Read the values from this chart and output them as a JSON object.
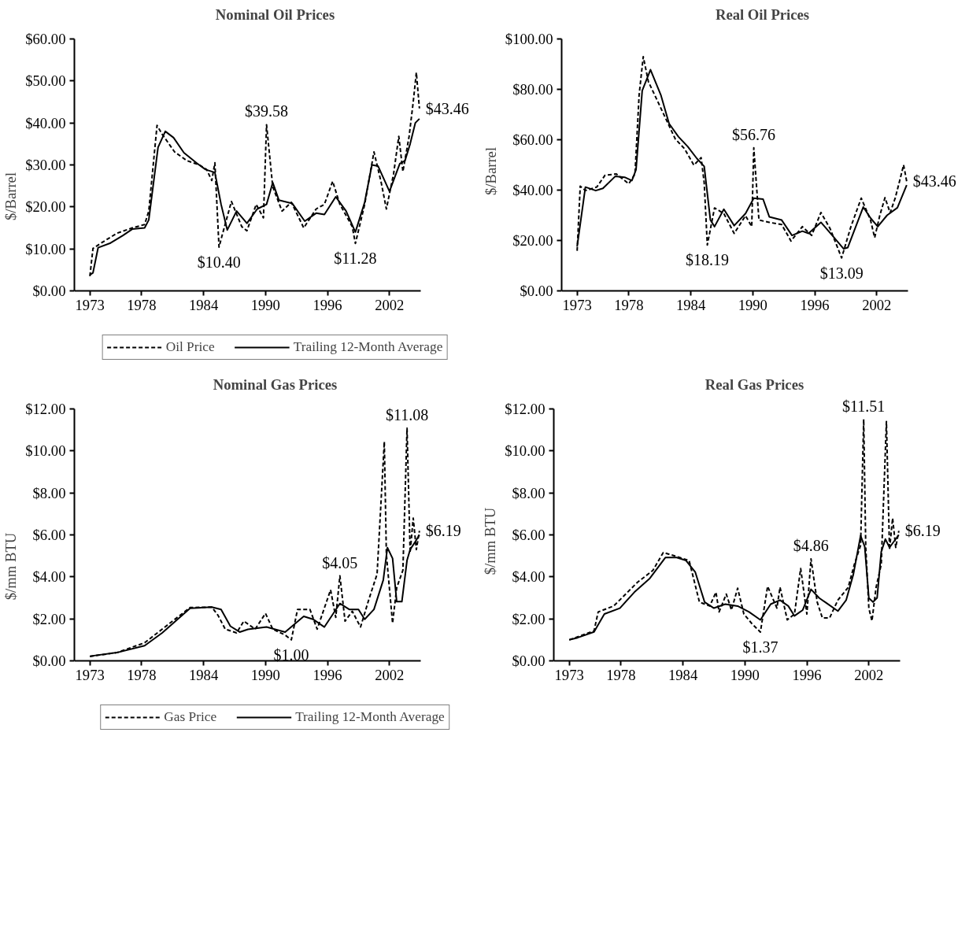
{
  "chart_data": [
    {
      "type": "line",
      "title": "Nominal Oil Prices",
      "ylabel": "$/Barrel",
      "xlim": [
        1971.5,
        2005
      ],
      "xticks": [
        1973,
        1978,
        1984,
        1990,
        1996,
        2002
      ],
      "ylim": [
        0,
        60
      ],
      "yticks": [
        {
          "value": 0,
          "label": "$0.00"
        },
        {
          "value": 10,
          "label": "$10.00"
        },
        {
          "value": 20,
          "label": "$20.00"
        },
        {
          "value": 30,
          "label": "$30.00"
        },
        {
          "value": 40,
          "label": "$40.00"
        },
        {
          "value": 50,
          "label": "$50.00"
        },
        {
          "value": 60,
          "label": "$60.00"
        }
      ],
      "legend": "bottom",
      "grid": false,
      "series": [
        {
          "name": "Oil Price",
          "color": "#000000",
          "line_style": "dashed",
          "x": [
            1973.0,
            1973.3,
            1974.1,
            1975.6,
            1977.1,
            1978.3,
            1978.7,
            1979.5,
            1980.0,
            1981.2,
            1982.4,
            1983.6,
            1984.3,
            1984.8,
            1985.1,
            1985.5,
            1985.8,
            1986.7,
            1987.7,
            1988.2,
            1989.1,
            1989.8,
            1990.1,
            1990.7,
            1991.6,
            1992.5,
            1993.7,
            1994.9,
            1995.7,
            1996.5,
            1997.2,
            1998.4,
            1998.7,
            1999.6,
            2000.5,
            2001.2,
            2001.7,
            2002.4,
            2002.9,
            2003.3,
            2003.9,
            2004.3,
            2004.6,
            2004.9
          ],
          "values": [
            3.5,
            10.1,
            11.4,
            13.7,
            15.0,
            15.8,
            19.0,
            39.4,
            37.3,
            33.1,
            31.0,
            30.0,
            28.9,
            26.3,
            30.5,
            10.4,
            13.2,
            21.3,
            15.3,
            14.3,
            20.6,
            17.4,
            39.58,
            24.8,
            19.0,
            21.1,
            15.0,
            19.5,
            20.6,
            26.1,
            20.6,
            15.3,
            11.28,
            20.6,
            33.1,
            25.8,
            19.5,
            27.9,
            36.8,
            28.4,
            36.8,
            45.0,
            52.0,
            43.46
          ]
        },
        {
          "name": "Trailing 12-Month Average",
          "color": "#000000",
          "line_style": "solid",
          "x": [
            1973.0,
            1973.3,
            1973.8,
            1975.0,
            1976.2,
            1977.1,
            1978.3,
            1978.7,
            1979.6,
            1980.3,
            1981.1,
            1982.1,
            1983.3,
            1984.2,
            1985.1,
            1985.7,
            1986.3,
            1987.2,
            1988.2,
            1989.2,
            1990.1,
            1990.7,
            1991.3,
            1992.6,
            1993.8,
            1994.9,
            1995.7,
            1996.8,
            1997.8,
            1998.7,
            1999.6,
            2000.3,
            2000.9,
            2002.0,
            2003.0,
            2003.5,
            2004.0,
            2004.5,
            2004.9
          ],
          "values": [
            3.8,
            4.3,
            10.3,
            11.4,
            13.2,
            14.7,
            15.0,
            16.9,
            34.2,
            38.0,
            36.5,
            32.9,
            30.5,
            28.9,
            28.2,
            20.6,
            14.5,
            19.0,
            16.1,
            19.5,
            20.6,
            25.8,
            21.6,
            20.8,
            16.6,
            18.5,
            18.2,
            22.4,
            19.0,
            14.0,
            21.1,
            30.0,
            29.7,
            23.7,
            30.3,
            31.0,
            35.0,
            40.0,
            41.0
          ]
        }
      ],
      "annotations": [
        {
          "text": "$39.58",
          "x": 1990.1,
          "y": 39.58
        },
        {
          "text": "$10.40",
          "x": 1985.5,
          "y": 10.4
        },
        {
          "text": "$11.28",
          "x": 1998.7,
          "y": 11.28
        },
        {
          "text": "$43.46",
          "x": 2004.9,
          "y": 43.46
        }
      ]
    },
    {
      "type": "line",
      "title": "Real Oil Prices",
      "ylabel": "$/Barrel",
      "xlim": [
        1971.5,
        2005
      ],
      "xticks": [
        1973,
        1978,
        1984,
        1990,
        1996,
        2002
      ],
      "ylim": [
        0,
        100
      ],
      "yticks": [
        {
          "value": 0,
          "label": "$0.00"
        },
        {
          "value": 20,
          "label": "$20.00"
        },
        {
          "value": 40,
          "label": "$40.00"
        },
        {
          "value": 60,
          "label": "$60.00"
        },
        {
          "value": 80,
          "label": "$80.00"
        },
        {
          "value": 100,
          "label": "$100.00"
        }
      ],
      "grid": false,
      "series": [
        {
          "color": "#000000",
          "line_style": "dashed",
          "x": [
            1973.0,
            1973.3,
            1973.8,
            1974.9,
            1975.7,
            1976.8,
            1978.0,
            1978.6,
            1979.0,
            1979.4,
            1979.9,
            1980.8,
            1981.7,
            1982.5,
            1983.4,
            1984.3,
            1985.0,
            1985.3,
            1985.6,
            1986.3,
            1987.2,
            1988.2,
            1989.3,
            1989.9,
            1990.1,
            1990.6,
            1991.6,
            1992.8,
            1993.7,
            1994.8,
            1995.7,
            1996.6,
            1997.5,
            1998.6,
            1999.5,
            2000.5,
            2001.4,
            2001.8,
            2002.3,
            2002.8,
            2003.3,
            2003.8,
            2004.3,
            2004.6,
            2004.9
          ],
          "values": [
            15.9,
            41.6,
            39.8,
            41.2,
            45.9,
            46.4,
            42.5,
            46.4,
            77.8,
            93.0,
            83.0,
            75.2,
            67.3,
            60.3,
            56.4,
            49.9,
            52.9,
            42.9,
            18.19,
            32.9,
            30.7,
            22.8,
            29.8,
            25.5,
            56.76,
            28.1,
            27.2,
            26.3,
            19.8,
            25.5,
            22.0,
            31.1,
            24.6,
            13.09,
            25.5,
            36.8,
            28.1,
            21.1,
            30.0,
            37.0,
            31.0,
            37.0,
            45.0,
            50.0,
            43.46
          ]
        },
        {
          "color": "#000000",
          "line_style": "solid",
          "x": [
            1973.0,
            1973.8,
            1974.8,
            1975.5,
            1976.7,
            1977.6,
            1978.3,
            1978.7,
            1979.3,
            1980.1,
            1981.1,
            1981.9,
            1982.8,
            1983.7,
            1984.6,
            1985.3,
            1985.9,
            1986.3,
            1987.2,
            1988.2,
            1989.3,
            1990.1,
            1991.0,
            1991.6,
            1992.8,
            1993.8,
            1994.8,
            1995.4,
            1996.6,
            1997.7,
            1998.8,
            1999.2,
            2000.7,
            2001.4,
            2002.1,
            2003.0,
            2004.0,
            2004.9
          ],
          "values": [
            17.6,
            41.2,
            39.8,
            40.7,
            45.5,
            45.1,
            43.8,
            48.1,
            79.5,
            87.8,
            77.8,
            66.4,
            61.2,
            57.3,
            52.5,
            49.4,
            28.1,
            25.5,
            32.4,
            25.9,
            30.7,
            36.8,
            36.4,
            29.4,
            28.1,
            22.0,
            23.7,
            22.8,
            27.2,
            22.0,
            16.7,
            17.2,
            33.3,
            28.9,
            25.5,
            30.0,
            33.0,
            42.0
          ]
        }
      ],
      "annotations": [
        {
          "text": "$56.76",
          "x": 1990.1,
          "y": 56.76
        },
        {
          "text": "$18.19",
          "x": 1985.6,
          "y": 18.19
        },
        {
          "text": "$13.09",
          "x": 1998.6,
          "y": 13.09
        },
        {
          "text": "$43.46",
          "x": 2004.9,
          "y": 43.46
        }
      ]
    },
    {
      "type": "line",
      "title": "Nominal Gas Prices",
      "ylabel": "$/mm BTU",
      "xlim": [
        1971.5,
        2005
      ],
      "xticks": [
        1973,
        1978,
        1984,
        1990,
        1996,
        2002
      ],
      "ylim": [
        0,
        12
      ],
      "yticks": [
        {
          "value": 0,
          "label": "$0.00"
        },
        {
          "value": 2,
          "label": "$2.00"
        },
        {
          "value": 4,
          "label": "$4.00"
        },
        {
          "value": 6,
          "label": "$6.00"
        },
        {
          "value": 8,
          "label": "$8.00"
        },
        {
          "value": 10,
          "label": "$10.00"
        },
        {
          "value": 12,
          "label": "$12.00"
        }
      ],
      "legend": "bottom",
      "grid": false,
      "series": [
        {
          "name": "Gas Price",
          "color": "#000000",
          "line_style": "dashed",
          "x": [
            1973.0,
            1975.6,
            1978.3,
            1980.0,
            1982.7,
            1984.8,
            1985.4,
            1986.1,
            1987.2,
            1987.9,
            1989.0,
            1990.0,
            1990.7,
            1991.9,
            1992.5,
            1993.1,
            1994.3,
            1995.0,
            1996.3,
            1996.8,
            1997.2,
            1997.7,
            1998.4,
            1999.2,
            2000.0,
            2000.8,
            2001.5,
            2001.7,
            2002.3,
            2002.7,
            2003.3,
            2003.7,
            2004.0,
            2004.3,
            2004.6,
            2004.9
          ],
          "values": [
            0.21,
            0.39,
            0.86,
            1.51,
            2.54,
            2.56,
            2.17,
            1.51,
            1.33,
            1.89,
            1.51,
            2.26,
            1.51,
            1.23,
            1.0,
            2.45,
            2.45,
            1.51,
            3.38,
            2.07,
            4.05,
            1.89,
            2.36,
            1.61,
            2.92,
            4.13,
            10.44,
            5.07,
            1.79,
            3.48,
            4.32,
            11.08,
            5.16,
            6.8,
            5.3,
            6.19
          ]
        },
        {
          "name": "Trailing 12-Month Average",
          "color": "#000000",
          "line_style": "solid",
          "x": [
            1973.0,
            1975.6,
            1978.3,
            1980.0,
            1982.7,
            1984.8,
            1985.7,
            1986.6,
            1987.5,
            1988.3,
            1990.1,
            1991.9,
            1993.7,
            1994.6,
            1995.7,
            1997.2,
            1998.1,
            1999.0,
            1999.6,
            2000.5,
            2001.4,
            2001.8,
            2002.3,
            2002.7,
            2003.2,
            2003.7,
            2004.0,
            2004.4,
            2004.9
          ],
          "values": [
            0.22,
            0.39,
            0.72,
            1.33,
            2.5,
            2.56,
            2.45,
            1.65,
            1.37,
            1.5,
            1.61,
            1.37,
            2.12,
            1.98,
            1.61,
            2.73,
            2.45,
            2.45,
            1.98,
            2.45,
            3.85,
            5.39,
            4.88,
            2.82,
            2.82,
            4.79,
            5.3,
            5.6,
            6.0
          ]
        }
      ],
      "annotations": [
        {
          "text": "$11.08",
          "x": 2003.7,
          "y": 11.08
        },
        {
          "text": "$4.05",
          "x": 1997.2,
          "y": 4.05
        },
        {
          "text": "$1.00",
          "x": 1992.5,
          "y": 1.0
        },
        {
          "text": "$6.19",
          "x": 2004.9,
          "y": 6.19
        }
      ]
    },
    {
      "type": "line",
      "title": "Real Gas Prices",
      "ylabel": "$/mm BTU",
      "xlim": [
        1971.5,
        2005
      ],
      "xticks": [
        1973,
        1978,
        1984,
        1990,
        1996,
        2002
      ],
      "ylim": [
        0,
        12
      ],
      "yticks": [
        {
          "value": 0,
          "label": "$0.00"
        },
        {
          "value": 2,
          "label": "$2.00"
        },
        {
          "value": 4,
          "label": "$4.00"
        },
        {
          "value": 6,
          "label": "$6.00"
        },
        {
          "value": 8,
          "label": "$8.00"
        },
        {
          "value": 10,
          "label": "$10.00"
        },
        {
          "value": 12,
          "label": "$12.00"
        }
      ],
      "grid": false,
      "series": [
        {
          "color": "#000000",
          "line_style": "dashed",
          "x": [
            1973.0,
            1975.4,
            1975.8,
            1977.3,
            1979.6,
            1981.1,
            1982.1,
            1983.4,
            1984.6,
            1985.6,
            1986.6,
            1987.2,
            1987.5,
            1988.2,
            1988.7,
            1989.3,
            1989.9,
            1990.7,
            1991.5,
            1992.2,
            1993.1,
            1993.4,
            1994.1,
            1994.8,
            1995.4,
            1996.0,
            1996.4,
            1997.0,
            1997.5,
            1998.2,
            1999.0,
            2000.0,
            2000.6,
            2001.2,
            2001.5,
            2001.7,
            2002.0,
            2002.3,
            2002.7,
            2003.2,
            2003.7,
            2004.0,
            2004.3,
            2004.6,
            2004.9
          ],
          "values": [
            1.0,
            1.43,
            2.33,
            2.61,
            3.74,
            4.31,
            5.16,
            4.97,
            4.78,
            2.8,
            2.61,
            3.27,
            2.33,
            3.18,
            2.42,
            3.46,
            2.23,
            1.76,
            1.37,
            3.55,
            2.51,
            3.51,
            1.95,
            2.23,
            4.4,
            2.23,
            4.86,
            2.8,
            2.04,
            2.04,
            2.89,
            3.5,
            4.6,
            5.5,
            11.51,
            5.4,
            2.5,
            1.9,
            3.5,
            4.6,
            11.4,
            5.3,
            6.8,
            5.4,
            6.19
          ]
        },
        {
          "color": "#000000",
          "line_style": "solid",
          "x": [
            1973.0,
            1973.8,
            1975.4,
            1976.4,
            1977.9,
            1979.3,
            1980.8,
            1982.3,
            1983.4,
            1984.3,
            1985.2,
            1986.1,
            1987.0,
            1988.1,
            1989.3,
            1990.4,
            1991.5,
            1992.5,
            1993.4,
            1994.2,
            1994.8,
            1995.6,
            1996.4,
            1997.2,
            1997.9,
            1999.0,
            1999.8,
            2000.5,
            2001.2,
            2001.6,
            2002.0,
            2002.4,
            2002.8,
            2003.2,
            2003.6,
            2004.0,
            2004.9
          ],
          "values": [
            1.0,
            1.1,
            1.38,
            2.23,
            2.51,
            3.27,
            3.93,
            4.92,
            4.92,
            4.78,
            4.22,
            2.8,
            2.51,
            2.7,
            2.61,
            2.33,
            1.95,
            2.7,
            2.89,
            2.61,
            2.14,
            2.42,
            3.41,
            2.99,
            2.75,
            2.37,
            2.89,
            4.12,
            5.96,
            5.44,
            2.99,
            2.8,
            3.0,
            5.2,
            5.8,
            5.4,
            6.0
          ]
        }
      ],
      "annotations": [
        {
          "text": "$11.51",
          "x": 2001.5,
          "y": 11.51
        },
        {
          "text": "$4.86",
          "x": 1996.4,
          "y": 4.86
        },
        {
          "text": "$1.37",
          "x": 1991.5,
          "y": 1.37
        },
        {
          "text": "$6.19",
          "x": 2004.9,
          "y": 6.19
        }
      ]
    }
  ]
}
